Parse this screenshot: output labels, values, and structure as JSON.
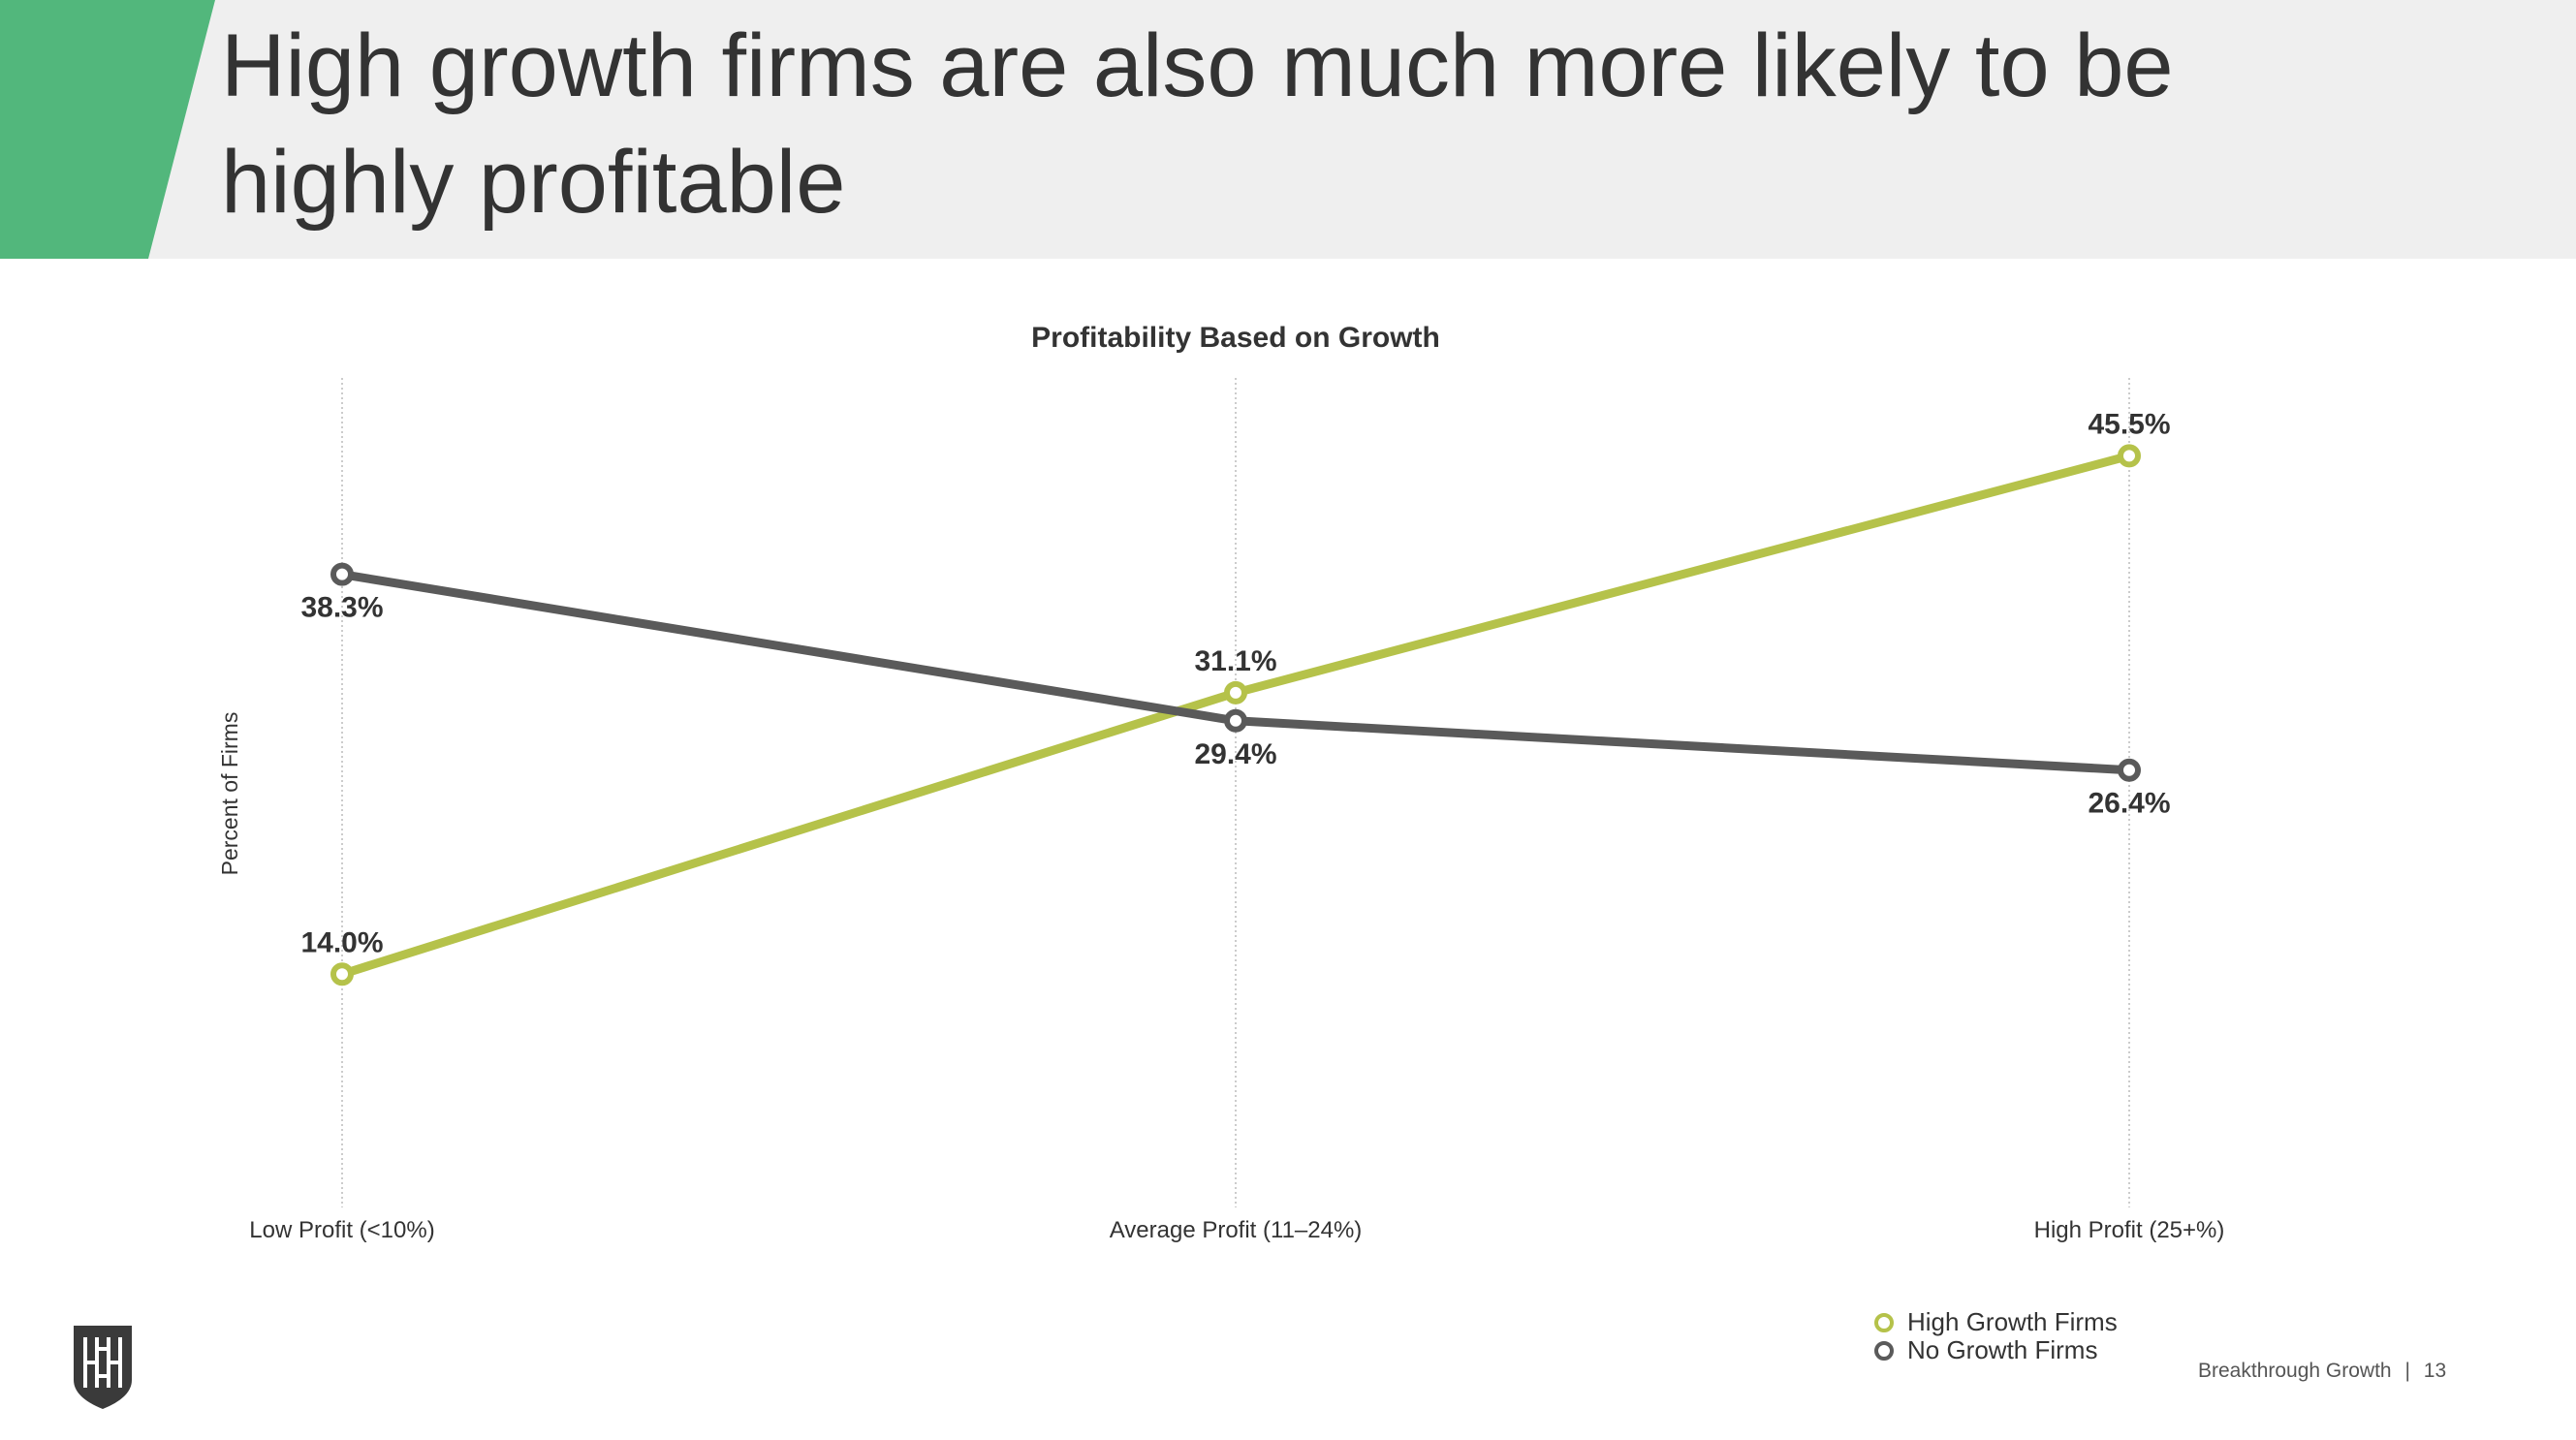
{
  "slide": {
    "title_line1": "High growth firms are also much more likely to be",
    "title_line2": "highly profitable",
    "footer_text": "Breakthrough Growth",
    "footer_sep": "|",
    "page_number": "13",
    "logo_text": "HH"
  },
  "chart_data": {
    "type": "line",
    "title": "Profitability Based on Growth",
    "xlabel": "",
    "ylabel": "Percent of Firms",
    "categories": [
      "Low Profit (<10%)",
      "Average Profit (11–24%)",
      "High Profit (25+%)"
    ],
    "ylim": [
      0,
      50
    ],
    "grid": "vertical dotted",
    "legend_position": "bottom-right",
    "series": [
      {
        "name": "High Growth Firms",
        "color": "#b5c24a",
        "values": [
          14.0,
          31.1,
          45.5
        ],
        "labels": [
          "14.0%",
          "31.1%",
          "45.5%"
        ],
        "label_pos": [
          "above",
          "above",
          "above"
        ]
      },
      {
        "name": "No Growth Firms",
        "color": "#5a5a5a",
        "values": [
          38.3,
          29.4,
          26.4
        ],
        "labels": [
          "38.3%",
          "29.4%",
          "26.4%"
        ],
        "label_pos": [
          "below",
          "below",
          "below"
        ]
      }
    ]
  }
}
